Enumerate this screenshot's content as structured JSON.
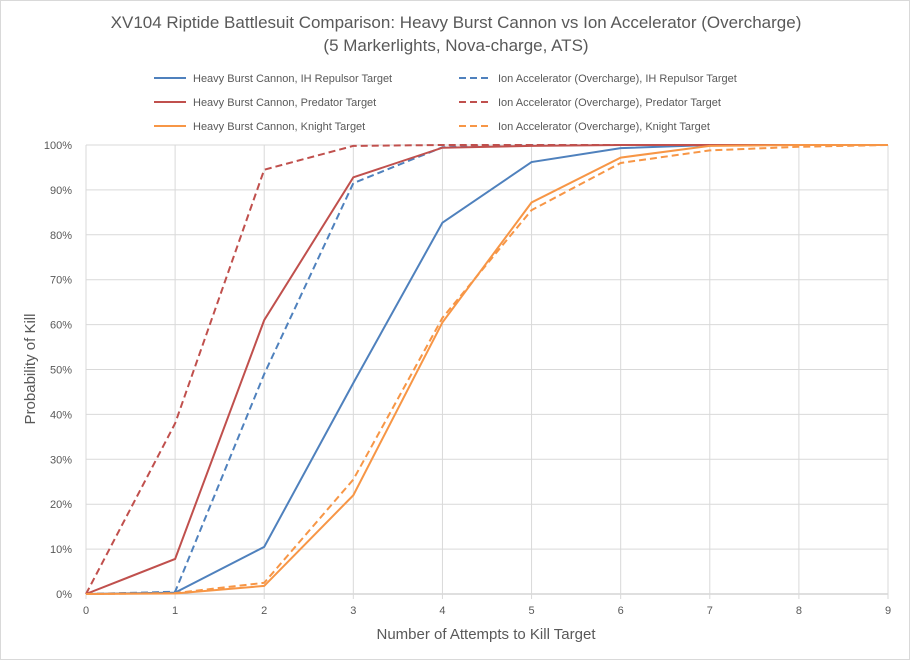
{
  "chart_data": {
    "type": "line",
    "title": "XV104 Riptide Battlesuit Comparison: Heavy Burst Cannon vs Ion Accelerator (Overcharge)",
    "subtitle": "(5 Markerlights, Nova-charge, ATS)",
    "xlabel": "Number of Attempts to Kill Target",
    "ylabel": "Probability of Kill",
    "x": [
      0,
      1,
      2,
      3,
      4,
      5,
      6,
      7,
      8,
      9
    ],
    "xlim": [
      0,
      9
    ],
    "ylim": [
      0,
      100
    ],
    "yticks": [
      "0%",
      "10%",
      "20%",
      "30%",
      "40%",
      "50%",
      "60%",
      "70%",
      "80%",
      "90%",
      "100%"
    ],
    "xticks": [
      "0",
      "1",
      "2",
      "3",
      "4",
      "5",
      "6",
      "7",
      "8",
      "9"
    ],
    "grid": true,
    "legend_position": "top",
    "series": [
      {
        "name": "Heavy Burst Cannon, IH Repulsor Target",
        "color": "#4f81bd",
        "dash": false,
        "values": [
          0,
          0.3,
          10.5,
          47,
          82.7,
          96.2,
          99.3,
          100,
          100,
          100
        ]
      },
      {
        "name": "Ion Accelerator (Overcharge), IH Repulsor Target",
        "color": "#4f81bd",
        "dash": true,
        "values": [
          0,
          0.5,
          49,
          91.5,
          99.5,
          100,
          100,
          100,
          100,
          100
        ]
      },
      {
        "name": "Heavy Burst Cannon, Predator Target",
        "color": "#c0504d",
        "dash": false,
        "values": [
          0,
          7.8,
          61,
          92.8,
          99.4,
          99.8,
          100,
          100,
          100,
          100
        ]
      },
      {
        "name": "Ion Accelerator (Overcharge), Predator Target",
        "color": "#c0504d",
        "dash": true,
        "values": [
          0,
          38,
          94.5,
          99.8,
          100,
          100,
          100,
          100,
          100,
          100
        ]
      },
      {
        "name": "Heavy Burst Cannon, Knight Target",
        "color": "#f79646",
        "dash": false,
        "values": [
          0,
          0.1,
          1.8,
          22,
          60.5,
          87.2,
          97.2,
          99.8,
          100,
          100
        ]
      },
      {
        "name": "Ion Accelerator (Overcharge), Knight Target",
        "color": "#f79646",
        "dash": true,
        "values": [
          0,
          0.2,
          2.5,
          25.5,
          61.5,
          85.5,
          96,
          98.8,
          99.6,
          100
        ]
      }
    ]
  }
}
